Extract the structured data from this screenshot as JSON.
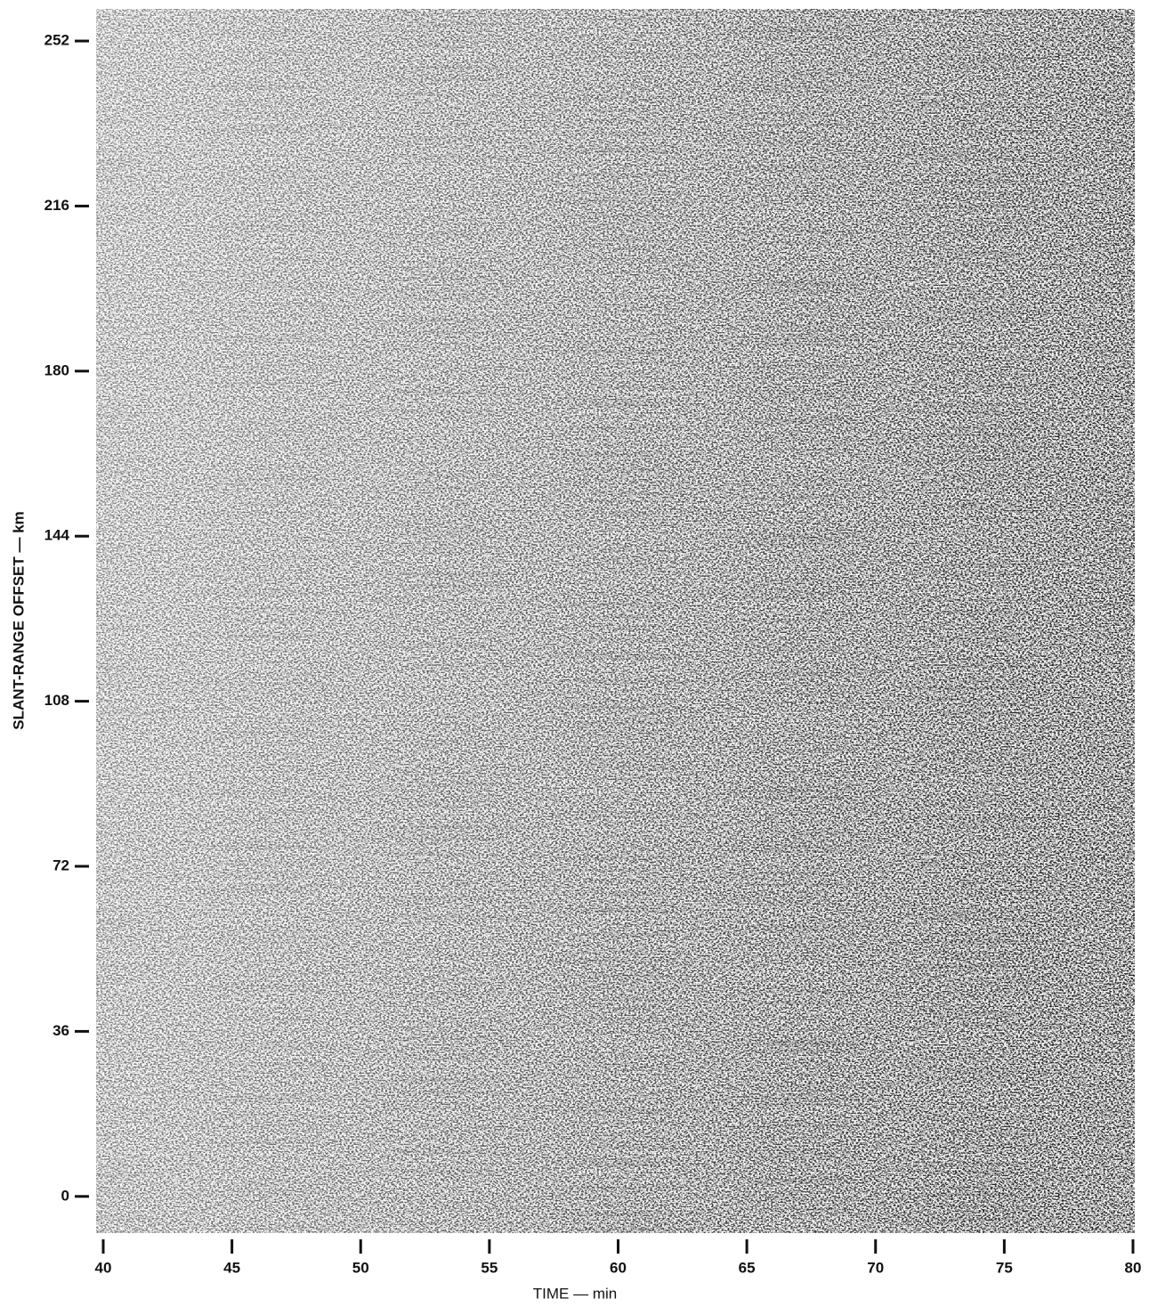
{
  "chart_data": {
    "type": "image",
    "xlabel": "TIME — min",
    "ylabel": "SLANT-RANGE OFFSET — km",
    "xlim": [
      40,
      80
    ],
    "xticks": [
      40,
      45,
      50,
      55,
      60,
      65,
      70,
      75,
      80
    ],
    "ylim": [
      -8,
      259
    ],
    "yticks": [
      0,
      36,
      72,
      108,
      144,
      180,
      216,
      252
    ]
  }
}
